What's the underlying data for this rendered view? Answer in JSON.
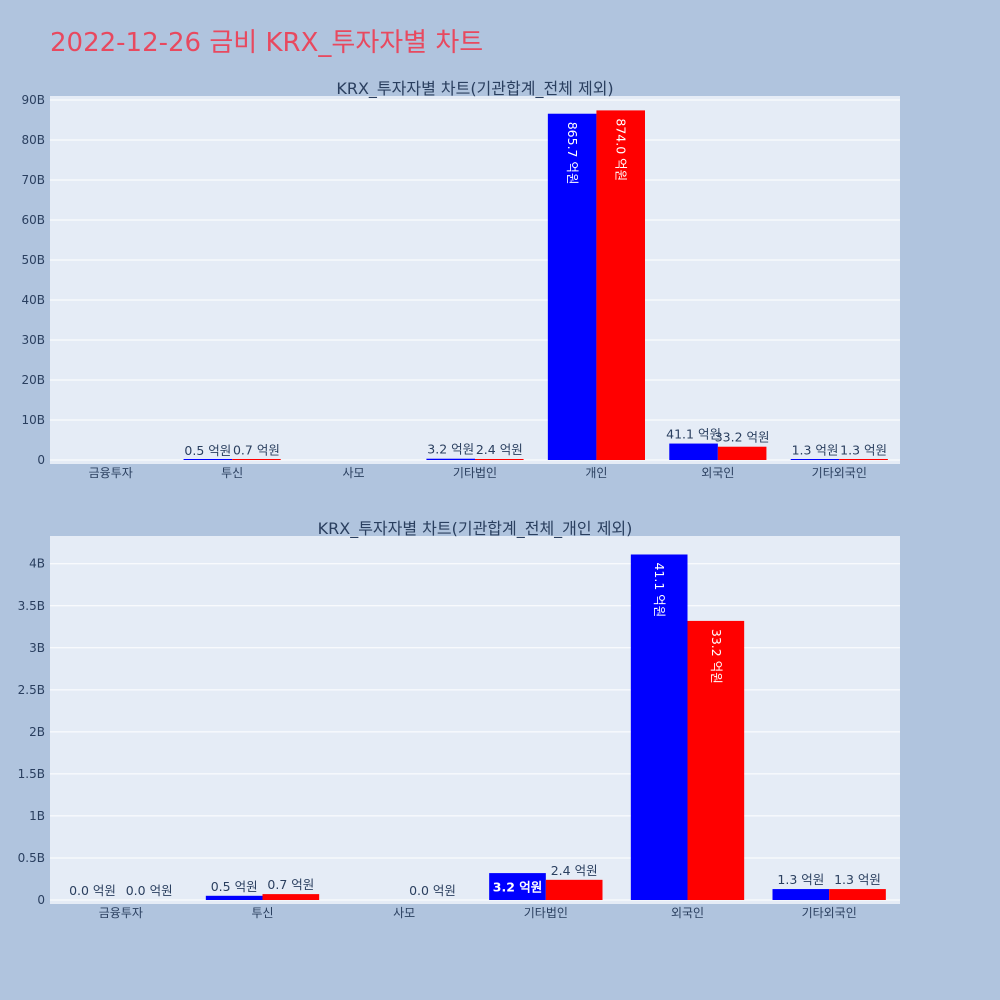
{
  "title": "2022-12-26 금비 KRX_투자자별 차트",
  "colors": {
    "buy": "#0000ff",
    "sell": "#ff0000",
    "plot_bg": "#e5ecf6",
    "page_bg": "#b0c4de",
    "title": "#e8495f"
  },
  "chart_data": [
    {
      "type": "bar",
      "title": "KRX_투자자별 차트(기관합계_전체 제외)",
      "categories": [
        "금융투자",
        "투신",
        "사모",
        "기타법인",
        "개인",
        "외국인",
        "기타외국인"
      ],
      "series": [
        {
          "values": [
            0,
            50000000,
            0,
            320000000,
            86570000000,
            4110000000,
            130000000
          ],
          "labels": [
            "",
            "0.5 억원",
            "",
            "3.2 억원",
            "865.7 억원",
            "41.1 억원",
            "1.3 억원"
          ]
        },
        {
          "values": [
            0,
            70000000,
            0,
            240000000,
            87400000000,
            3320000000,
            130000000
          ],
          "labels": [
            "",
            "0.7 억원",
            "",
            "2.4 억원",
            "874.0 억원",
            "33.2 억원",
            "1.3 억원"
          ]
        }
      ],
      "yticks": [
        0,
        10000000000,
        20000000000,
        30000000000,
        40000000000,
        50000000000,
        60000000000,
        70000000000,
        80000000000,
        90000000000
      ],
      "ytick_labels": [
        "0",
        "10B",
        "20B",
        "30B",
        "40B",
        "50B",
        "60B",
        "70B",
        "80B",
        "90B"
      ],
      "ylim": [
        0,
        91000000000
      ],
      "grid": true
    },
    {
      "type": "bar",
      "title": "KRX_투자자별 차트(기관합계_전체_개인 제외)",
      "categories": [
        "금융투자",
        "투신",
        "사모",
        "기타법인",
        "외국인",
        "기타외국인"
      ],
      "series": [
        {
          "values": [
            0,
            50000000,
            null,
            320000000,
            4110000000,
            130000000
          ],
          "labels": [
            "0.0 억원",
            "0.5 억원",
            "",
            "3.2 억원",
            "41.1 억원",
            "1.3 억원"
          ]
        },
        {
          "values": [
            0,
            70000000,
            0,
            240000000,
            3320000000,
            130000000
          ],
          "labels": [
            "0.0 억원",
            "0.7 억원",
            "0.0 억원",
            "2.4 억원",
            "33.2 억원",
            "1.3 억원"
          ]
        }
      ],
      "yticks": [
        0,
        500000000,
        1000000000,
        1500000000,
        2000000000,
        2500000000,
        3000000000,
        3500000000,
        4000000000
      ],
      "ytick_labels": [
        "0",
        "0.5B",
        "1B",
        "1.5B",
        "2B",
        "2.5B",
        "3B",
        "3.5B",
        "4B"
      ],
      "ylim": [
        0,
        4330000000
      ],
      "grid": true
    }
  ]
}
